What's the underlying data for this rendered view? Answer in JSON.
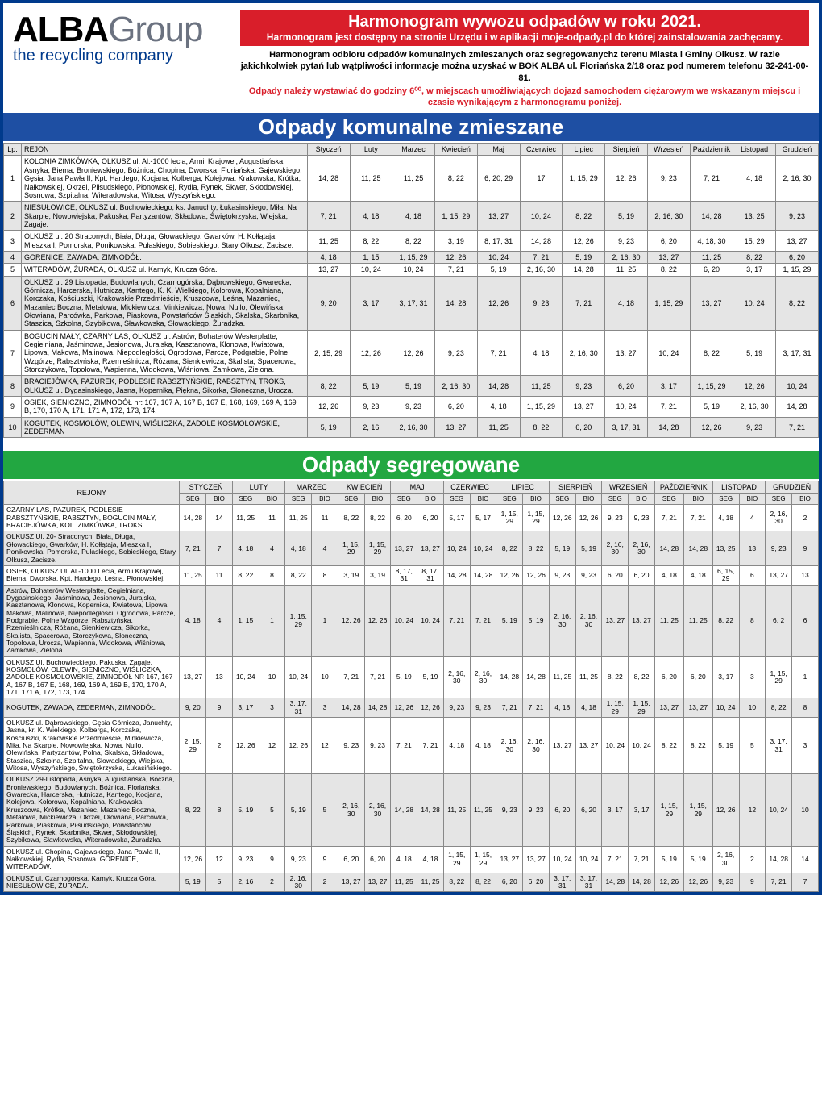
{
  "logo": {
    "word1": "ALBA",
    "word2": "Group",
    "sub": "the recycling company"
  },
  "banner": {
    "line1": "Harmonogram wywozu odpadów w roku 2021.",
    "line2": "Harmonogram jest dostępny na stronie Urzędu i w aplikacji moje-odpady.pl do której zainstalowania zachęcamy."
  },
  "para1": "Harmonogram odbioru odpadów komunalnych zmieszanych oraz segregowanychz terenu Miasta i Gminy Olkusz. W razie jakichkolwiek pytań lub wątpliwości informacje można uzyskać w BOK ALBA ul. Floriańska 2/18 oraz pod numerem telefonu 32-241-00-81.",
  "para2": "Odpady należy wystawiać do godziny 6⁰⁰, w miejscach umożliwiających dojazd samochodem ciężarowym we wskazanym miejscu i czasie wynikającym z harmonogramu poniżej.",
  "sec1": "Odpady komunalne zmieszane",
  "sec2": "Odpady segregowane",
  "months": [
    "Styczeń",
    "Luty",
    "Marzec",
    "Kwiecień",
    "Maj",
    "Czerwiec",
    "Lipiec",
    "Sierpień",
    "Wrzesień",
    "Październik",
    "Listopad",
    "Grudzień"
  ],
  "monthsU": [
    "STYCZEŃ",
    "LUTY",
    "MARZEC",
    "KWIECIEŃ",
    "MAJ",
    "CZERWIEC",
    "LIPIEC",
    "SIERPIEŃ",
    "WRZESIEŃ",
    "PAŹDZIERNIK",
    "LISTOPAD",
    "GRUDZIEŃ"
  ],
  "h_lp": "Lp.",
  "h_rejon": "REJON",
  "h_rejony": "REJONY",
  "h_seg": "SEG",
  "h_bio": "BIO",
  "t1": [
    {
      "lp": "1",
      "rejon": "KOLONIA ZIMKÓWKA, OLKUSZ ul. Al.-1000 lecia, Armii Krajowej, Augustiańska, Asnyka, Biema, Broniewskiego, Bóżnica, Chopina, Dworska, Floriańska, Gajewskiego, Gęsia, Jana Pawła II, Kpt. Hardego, Kocjana, Kolberga, Kolejowa, Krakowska, Krótka, Nałkowskiej, Okrzei, Piłsudskiego, Płonowskiej, Rydla, Rynek, Skwer, Skłodowskiej, Sosnowa, Szpitalna, Witeradowska, Witosa, Wyszyńskiego.",
      "v": [
        "14, 28",
        "11, 25",
        "11, 25",
        "8, 22",
        "6, 20, 29",
        "17",
        "1, 15, 29",
        "12, 26",
        "9, 23",
        "7, 21",
        "4, 18",
        "2, 16, 30"
      ]
    },
    {
      "lp": "2",
      "rejon": "NIESUŁOWICE, OLKUSZ ul. Buchowieckiego, ks. Januchty, Łukasinskiego, Miła, Na Skarpie, Nowowiejska, Pakuska, Partyzantów, Składowa, Świętokrzyska, Wiejska, Zagaje.",
      "v": [
        "7, 21",
        "4, 18",
        "4, 18",
        "1, 15, 29",
        "13, 27",
        "10, 24",
        "8, 22",
        "5, 19",
        "2, 16, 30",
        "14, 28",
        "13, 25",
        "9, 23"
      ]
    },
    {
      "lp": "3",
      "rejon": "OLKUSZ ul. 20 Straconych, Biała, Długa, Głowackiego, Gwarków, H. Kołłątaja, Mieszka I, Pomorska, Ponikowska, Pułaskiego, Sobieskiego, Stary Olkusz, Zacisze.",
      "v": [
        "11, 25",
        "8, 22",
        "8, 22",
        "3, 19",
        "8, 17, 31",
        "14, 28",
        "12, 26",
        "9, 23",
        "6, 20",
        "4, 18, 30",
        "15, 29",
        "13, 27"
      ]
    },
    {
      "lp": "4",
      "rejon": "GORENICE, ZAWADA, ZIMNODÓŁ.",
      "v": [
        "4, 18",
        "1, 15",
        "1, 15, 29",
        "12, 26",
        "10, 24",
        "7, 21",
        "5, 19",
        "2, 16, 30",
        "13, 27",
        "11, 25",
        "8, 22",
        "6, 20"
      ]
    },
    {
      "lp": "5",
      "rejon": "WITERADÓW, ŻURADA, OLKUSZ ul. Kamyk, Krucza Góra.",
      "v": [
        "13, 27",
        "10, 24",
        "10, 24",
        "7, 21",
        "5, 19",
        "2, 16, 30",
        "14, 28",
        "11, 25",
        "8, 22",
        "6, 20",
        "3, 17",
        "1, 15, 29"
      ]
    },
    {
      "lp": "6",
      "rejon": "OLKUSZ ul. 29 Listopada, Budowlanych, Czarnogórska, Dąbrowskiego, Gwarecka, Górnicza, Harcerska, Hutnicza, Kantego, K. K. Wielkiego, Kolorowa, Kopalniana, Korczaka, Kościuszki, Krakowskie Przedmieście, Kruszcowa, Leśna, Mazaniec, Mazaniec Boczna, Metalowa, Mickiewicza, Minkiewicza, Nowa, Nullo, Olewińska, Ołowiana, Parcówka, Parkowa, Piaskowa, Powstańców Śląskich, Skalska, Skarbnika, Staszica, Szkolna, Szybikowa, Sławkowska, Słowackiego, Żuradzka.",
      "v": [
        "9, 20",
        "3, 17",
        "3, 17, 31",
        "14, 28",
        "12, 26",
        "9, 23",
        "7, 21",
        "4, 18",
        "1, 15, 29",
        "13, 27",
        "10, 24",
        "8, 22"
      ]
    },
    {
      "lp": "7",
      "rejon": "BOGUCIN MAŁY, CZARNY LAS, OLKUSZ ul. Astrów, Bohaterów Westerplatte, Cegielniana, Jaśminowa, Jesionowa, Jurajska, Kasztanowa, Klonowa, Kwiatowa, Lipowa, Makowa, Malinowa, Niepodległości, Ogrodowa, Parcze, Podgrabie, Polne Wzgórze, Rabsztyńska, Rzemieślnicza, Różana, Sienkiewicza, Skalista, Spacerowa, Storczykowa, Topolowa, Wapienna, Widokowa, Wiśniowa, Zamkowa, Zielona.",
      "v": [
        "2, 15, 29",
        "12, 26",
        "12, 26",
        "9, 23",
        "7, 21",
        "4, 18",
        "2, 16, 30",
        "13, 27",
        "10, 24",
        "8, 22",
        "5, 19",
        "3, 17, 31"
      ]
    },
    {
      "lp": "8",
      "rejon": "BRACIEJÓWKA, PAZUREK, PODLESIE RABSZTYŃSKIE, RABSZTYN, TROKS, OLKUSZ ul. Dygasinskiego, Jasna, Kopernika, Piękna, Sikorka, Słoneczna, Urocza.",
      "v": [
        "8, 22",
        "5, 19",
        "5, 19",
        "2, 16, 30",
        "14, 28",
        "11, 25",
        "9, 23",
        "6, 20",
        "3, 17",
        "1, 15, 29",
        "12, 26",
        "10, 24"
      ]
    },
    {
      "lp": "9",
      "rejon": "OSIEK, SIENICZNO, ZIMNODÓŁ nr: 167, 167 A, 167 B, 167 E, 168, 169, 169 A, 169 B, 170, 170 A, 171, 171 A, 172, 173, 174.",
      "v": [
        "12, 26",
        "9, 23",
        "9, 23",
        "6, 20",
        "4, 18",
        "1, 15, 29",
        "13, 27",
        "10, 24",
        "7, 21",
        "5, 19",
        "2, 16, 30",
        "14, 28"
      ]
    },
    {
      "lp": "10",
      "rejon": "KOGUTEK, KOSMOLÓW, OLEWIN, WIŚLICZKA, ZADOLE KOSMOLOWSKIE, ZEDERMAN",
      "v": [
        "5, 19",
        "2, 16",
        "2, 16, 30",
        "13, 27",
        "11, 25",
        "8, 22",
        "6, 20",
        "3, 17, 31",
        "14, 28",
        "12, 26",
        "9, 23",
        "7, 21"
      ]
    }
  ],
  "t2": [
    {
      "r": "CZARNY LAS, PAZUREK, PODLESIE RABSZTYŃSKIE, RABSZTYN, BOGUCIN MAŁY, BRACIEJÓWKA, KOL. ZIMKÓWKA, TROKS.",
      "v": [
        "14, 28",
        "14",
        "11, 25",
        "11",
        "11, 25",
        "11",
        "8, 22",
        "8, 22",
        "6, 20",
        "6, 20",
        "5, 17",
        "5, 17",
        "1, 15, 29",
        "1, 15, 29",
        "12, 26",
        "12, 26",
        "9, 23",
        "9, 23",
        "7, 21",
        "7, 21",
        "4, 18",
        "4",
        "2, 16, 30",
        "2"
      ]
    },
    {
      "r": "OLKUSZ Ul. 20- Straconych, Biała, Długa, Głowackiego, Gwarków, H. Kołłątaja, Mieszka I, Ponikowska, Pomorska, Pułaskiego, Sobieskiego, Stary Olkusz, Zacisze.",
      "v": [
        "7, 21",
        "7",
        "4, 18",
        "4",
        "4, 18",
        "4",
        "1, 15, 29",
        "1, 15, 29",
        "13, 27",
        "13, 27",
        "10, 24",
        "10, 24",
        "8, 22",
        "8, 22",
        "5, 19",
        "5, 19",
        "2, 16, 30",
        "2, 16, 30",
        "14, 28",
        "14, 28",
        "13, 25",
        "13",
        "9, 23",
        "9"
      ]
    },
    {
      "r": "OSIEK, OLKUSZ Ul. Al.-1000 Lecia, Armii Krajowej, Biema, Dworska, Kpt. Hardego, Leśna, Płonowskiej.",
      "v": [
        "11, 25",
        "11",
        "8, 22",
        "8",
        "8, 22",
        "8",
        "3, 19",
        "3, 19",
        "8, 17, 31",
        "8, 17, 31",
        "14, 28",
        "14, 28",
        "12, 26",
        "12, 26",
        "9, 23",
        "9, 23",
        "6, 20",
        "6, 20",
        "4, 18",
        "4, 18",
        "6, 15, 29",
        "6",
        "13, 27",
        "13"
      ]
    },
    {
      "r": "Astrów, Bohaterów Westerplatte, Cegielniana, Dygasinskiego, Jaśminowa, Jesionowa, Jurajska, Kasztanowa, Klonowa, Kopernika, Kwiatowa, Lipowa, Makowa, Malinowa, Niepodległości, Ogrodowa, Parcze, Podgrabie, Polne Wzgórze, Rabsztyńska, Rzemieślnicza, Różana, Sienkiewicza, Sikorka, Skalista, Spacerowa, Storczykowa, Słoneczna, Topolowa, Urocza, Wapienna, Widokowa, Wiśniowa, Zamkowa, Zielona.",
      "v": [
        "4, 18",
        "4",
        "1, 15",
        "1",
        "1, 15, 29",
        "1",
        "12, 26",
        "12, 26",
        "10, 24",
        "10, 24",
        "7, 21",
        "7, 21",
        "5, 19",
        "5, 19",
        "2, 16, 30",
        "2, 16, 30",
        "13, 27",
        "13, 27",
        "11, 25",
        "11, 25",
        "8, 22",
        "8",
        "6, 2",
        "6"
      ]
    },
    {
      "r": "OLKUSZ Ul. Buchowieckiego, Pakuska, Zagaje, KOSMOLÓW, OLEWIN, SIENICZNO, WIŚLICZKA, ZADOLE KOSMOLOWSKIE, ZIMNODÓŁ NR 167, 167 A, 167 B, 167 E, 168, 169, 169 A, 169 B, 170, 170 A, 171, 171 A, 172, 173, 174.",
      "v": [
        "13, 27",
        "13",
        "10, 24",
        "10",
        "10, 24",
        "10",
        "7, 21",
        "7, 21",
        "5, 19",
        "5, 19",
        "2, 16, 30",
        "2, 16, 30",
        "14, 28",
        "14, 28",
        "11, 25",
        "11, 25",
        "8, 22",
        "8, 22",
        "6, 20",
        "6, 20",
        "3, 17",
        "3",
        "1, 15, 29",
        "1"
      ]
    },
    {
      "r": "KOGUTEK, ZAWADA, ZEDERMAN, ZIMNODÓŁ.",
      "v": [
        "9, 20",
        "9",
        "3, 17",
        "3",
        "3, 17, 31",
        "3",
        "14, 28",
        "14, 28",
        "12, 26",
        "12, 26",
        "9, 23",
        "9, 23",
        "7, 21",
        "7, 21",
        "4, 18",
        "4, 18",
        "1, 15, 29",
        "1, 15, 29",
        "13, 27",
        "13, 27",
        "10, 24",
        "10",
        "8, 22",
        "8"
      ]
    },
    {
      "r": "OLKUSZ ul. Dąbrowskiego, Gęsia Górnicza, Januchty, Jasna, kr. K. Wielkiego, Kolberga, Korczaka, Kościuszki, Krakowskie Przedmieście, Minkiewicza, Miła, Na Skarpie, Nowowiejska, Nowa, Nullo, Olewińska, Partyzantów, Polna, Skalska, Składowa, Staszica, Szkolna, Szpitalna, Słowackiego, Wiejska, Witosa, Wyszyńskiego, Świętokrzyska, Łukasińskiego.",
      "v": [
        "2, 15, 29",
        "2",
        "12, 26",
        "12",
        "12, 26",
        "12",
        "9, 23",
        "9, 23",
        "7, 21",
        "7, 21",
        "4, 18",
        "4, 18",
        "2, 16, 30",
        "2, 16, 30",
        "13, 27",
        "13, 27",
        "10, 24",
        "10, 24",
        "8, 22",
        "8, 22",
        "5, 19",
        "5",
        "3, 17, 31",
        "3"
      ]
    },
    {
      "r": "OLKUSZ 29-Listopada, Asnyka, Augustiańska, Boczna, Broniewskiego, Budowlanych, Bóżnica, Floriańska, Gwarecka, Harcerska, Hutnicza, Kantego, Kocjana, Kolejowa, Kolorowa, Kopalniana, Krakowska, Kruszcowa, Krótka, Mazaniec, Mazaniec Boczna, Metalowa, Mickiewicza, Okrzei, Ołowiana, Parcówka, Parkowa, Piaskowa, Piłsudskiego, Powstańców Śląskich, Rynek, Skarbnika, Skwer, Skłodowskiej, Szybikowa, Sławkowska, Witeradowska, Żuradzka.",
      "v": [
        "8, 22",
        "8",
        "5, 19",
        "5",
        "5, 19",
        "5",
        "2, 16, 30",
        "2, 16, 30",
        "14, 28",
        "14, 28",
        "11, 25",
        "11, 25",
        "9, 23",
        "9, 23",
        "6, 20",
        "6, 20",
        "3, 17",
        "3, 17",
        "1, 15, 29",
        "1, 15, 29",
        "12, 26",
        "12",
        "10, 24",
        "10"
      ]
    },
    {
      "r": "OLKUSZ ul. Chopina, Gajewskiego, Jana Pawła II, Nałkowskiej, Rydla, Sosnowa. GORENICE, WITERADÓW.",
      "v": [
        "12, 26",
        "12",
        "9, 23",
        "9",
        "9, 23",
        "9",
        "6, 20",
        "6, 20",
        "4, 18",
        "4, 18",
        "1, 15, 29",
        "1, 15, 29",
        "13, 27",
        "13, 27",
        "10, 24",
        "10, 24",
        "7, 21",
        "7, 21",
        "5, 19",
        "5, 19",
        "2, 16, 30",
        "2",
        "14, 28",
        "14"
      ]
    },
    {
      "r": "OLKUSZ ul. Czarnogórska, Kamyk, Krucza Góra. NIESUŁOWICE, ŻURADA.",
      "v": [
        "5, 19",
        "5",
        "2, 16",
        "2",
        "2, 16, 30",
        "2",
        "13, 27",
        "13, 27",
        "11, 25",
        "11, 25",
        "8, 22",
        "8, 22",
        "6, 20",
        "6, 20",
        "3, 17, 31",
        "3, 17, 31",
        "14, 28",
        "14, 28",
        "12, 26",
        "12, 26",
        "9, 23",
        "9",
        "7, 21",
        "7"
      ]
    }
  ]
}
